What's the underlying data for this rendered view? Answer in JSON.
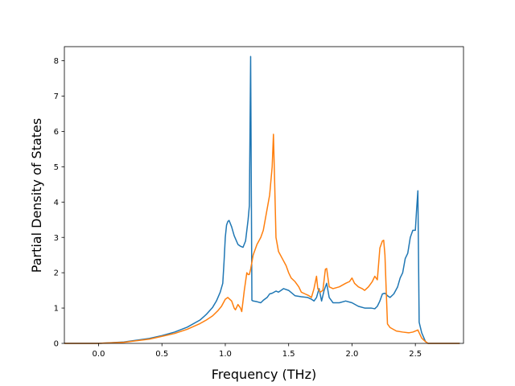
{
  "chart_data": {
    "type": "line",
    "title": "",
    "xlabel": "Frequency (THz)",
    "ylabel": "Partial Density of States",
    "xlim": [
      -0.27,
      2.88
    ],
    "ylim": [
      0,
      8.4
    ],
    "xticks": [
      0.0,
      0.5,
      1.0,
      1.5,
      2.0,
      2.5
    ],
    "xtick_labels": [
      "0.0",
      "0.5",
      "1.0",
      "1.5",
      "2.0",
      "2.5"
    ],
    "yticks": [
      0,
      1,
      2,
      3,
      4,
      5,
      6,
      7,
      8
    ],
    "ytick_labels": [
      "0",
      "1",
      "2",
      "3",
      "4",
      "5",
      "6",
      "7",
      "8"
    ],
    "grid": false,
    "legend": "none",
    "series": [
      {
        "color": "#1f77b4",
        "x": [
          -0.27,
          0.0,
          0.2,
          0.4,
          0.5,
          0.6,
          0.7,
          0.8,
          0.85,
          0.9,
          0.93,
          0.96,
          0.98,
          0.99,
          1.0,
          1.01,
          1.02,
          1.03,
          1.05,
          1.07,
          1.1,
          1.12,
          1.14,
          1.16,
          1.18,
          1.19,
          1.2,
          1.21,
          1.22,
          1.25,
          1.28,
          1.3,
          1.33,
          1.35,
          1.37,
          1.4,
          1.42,
          1.44,
          1.46,
          1.5,
          1.55,
          1.6,
          1.65,
          1.68,
          1.7,
          1.72,
          1.74,
          1.76,
          1.78,
          1.8,
          1.82,
          1.85,
          1.9,
          1.95,
          2.0,
          2.05,
          2.1,
          2.15,
          2.18,
          2.2,
          2.22,
          2.24,
          2.26,
          2.28,
          2.3,
          2.33,
          2.36,
          2.38,
          2.4,
          2.42,
          2.44,
          2.46,
          2.48,
          2.5,
          2.51,
          2.52,
          2.53,
          2.55,
          2.58,
          2.6,
          2.7,
          2.85
        ],
        "y": [
          0,
          0,
          0.04,
          0.14,
          0.22,
          0.32,
          0.46,
          0.66,
          0.82,
          1.02,
          1.2,
          1.45,
          1.7,
          2.3,
          3.0,
          3.35,
          3.45,
          3.48,
          3.3,
          3.05,
          2.8,
          2.75,
          2.72,
          2.9,
          3.5,
          3.9,
          8.12,
          1.22,
          1.2,
          1.18,
          1.15,
          1.22,
          1.3,
          1.4,
          1.42,
          1.48,
          1.45,
          1.5,
          1.55,
          1.5,
          1.35,
          1.32,
          1.3,
          1.25,
          1.2,
          1.3,
          1.55,
          1.2,
          1.5,
          1.7,
          1.3,
          1.15,
          1.15,
          1.2,
          1.15,
          1.05,
          1.0,
          1.0,
          0.98,
          1.05,
          1.2,
          1.4,
          1.42,
          1.35,
          1.3,
          1.4,
          1.6,
          1.85,
          2.0,
          2.4,
          2.55,
          3.0,
          3.2,
          3.2,
          3.8,
          4.32,
          0.6,
          0.3,
          0.05,
          0,
          0,
          0
        ]
      },
      {
        "color": "#ff7f0e",
        "x": [
          -0.27,
          0.0,
          0.2,
          0.4,
          0.5,
          0.6,
          0.7,
          0.8,
          0.85,
          0.9,
          0.94,
          0.97,
          1.0,
          1.02,
          1.05,
          1.07,
          1.08,
          1.1,
          1.12,
          1.13,
          1.15,
          1.17,
          1.18,
          1.19,
          1.2,
          1.22,
          1.25,
          1.28,
          1.3,
          1.32,
          1.35,
          1.37,
          1.38,
          1.39,
          1.4,
          1.42,
          1.45,
          1.48,
          1.5,
          1.52,
          1.55,
          1.58,
          1.6,
          1.63,
          1.66,
          1.68,
          1.7,
          1.72,
          1.73,
          1.75,
          1.77,
          1.79,
          1.8,
          1.82,
          1.85,
          1.9,
          1.95,
          1.98,
          2.0,
          2.02,
          2.05,
          2.08,
          2.1,
          2.13,
          2.16,
          2.18,
          2.2,
          2.22,
          2.24,
          2.25,
          2.26,
          2.27,
          2.28,
          2.3,
          2.35,
          2.4,
          2.45,
          2.48,
          2.5,
          2.52,
          2.53,
          2.55,
          2.58,
          2.6,
          2.7,
          2.85
        ],
        "y": [
          0,
          0,
          0.03,
          0.12,
          0.2,
          0.28,
          0.4,
          0.56,
          0.66,
          0.78,
          0.92,
          1.05,
          1.25,
          1.3,
          1.2,
          1.0,
          0.95,
          1.1,
          1.0,
          0.9,
          1.5,
          2.0,
          1.95,
          1.95,
          2.1,
          2.5,
          2.8,
          3.0,
          3.2,
          3.6,
          4.2,
          5.0,
          5.92,
          4.5,
          3.0,
          2.6,
          2.4,
          2.2,
          2.0,
          1.85,
          1.75,
          1.6,
          1.45,
          1.4,
          1.35,
          1.3,
          1.55,
          1.9,
          1.55,
          1.45,
          1.5,
          2.1,
          2.12,
          1.6,
          1.55,
          1.6,
          1.7,
          1.75,
          1.85,
          1.7,
          1.6,
          1.55,
          1.5,
          1.6,
          1.75,
          1.9,
          1.8,
          2.7,
          2.9,
          2.92,
          2.5,
          1.5,
          0.55,
          0.45,
          0.35,
          0.32,
          0.3,
          0.32,
          0.35,
          0.38,
          0.3,
          0.15,
          0.05,
          0,
          0,
          0
        ]
      }
    ]
  }
}
